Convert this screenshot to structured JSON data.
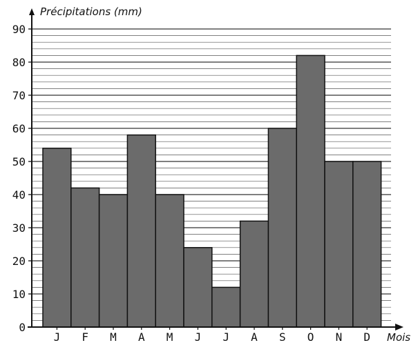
{
  "chart_data": {
    "type": "bar",
    "ylabel": "Précipitations (mm)",
    "xlabel": "Mois",
    "categories": [
      "J",
      "F",
      "M",
      "A",
      "M",
      "J",
      "J",
      "A",
      "S",
      "O",
      "N",
      "D"
    ],
    "values": [
      54,
      42,
      40,
      58,
      40,
      24,
      12,
      32,
      60,
      82,
      50,
      50
    ],
    "ylim": [
      0,
      90
    ],
    "yticks": [
      0,
      10,
      20,
      30,
      40,
      50,
      60,
      70,
      80,
      90
    ],
    "grid": true,
    "minor_grid_step": 2,
    "bar_color": "#6b6b6b",
    "grid_color": "#555555",
    "legend": "none"
  }
}
